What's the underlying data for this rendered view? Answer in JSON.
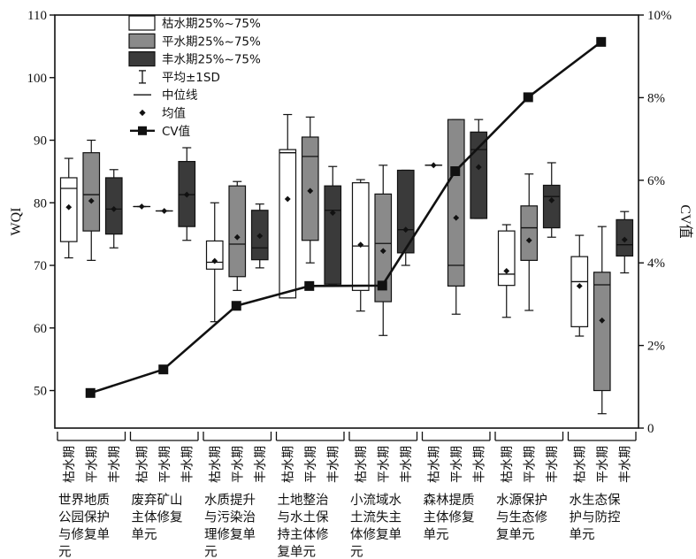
{
  "chart_data": {
    "type": "box",
    "y_label": "WQI",
    "y2_label": "CV值",
    "ylim": [
      44,
      110
    ],
    "yticks": [
      50,
      60,
      70,
      80,
      90,
      100,
      110
    ],
    "y2lim": [
      0,
      10
    ],
    "y2ticks": [
      "0",
      "2%",
      "4%",
      "6%",
      "8%",
      "10%"
    ],
    "legend": {
      "position": "top-left",
      "items": [
        {
          "kind": "box",
          "fill": "#ffffff",
          "label": "枯水期25%~75%"
        },
        {
          "kind": "box",
          "fill": "#8a8a8a",
          "label": "平水期25%~75%"
        },
        {
          "kind": "box",
          "fill": "#3a3a3a",
          "label": "丰水期25%~75%"
        },
        {
          "kind": "errorbar",
          "label": "平均±1SD"
        },
        {
          "kind": "median",
          "label": "中位线"
        },
        {
          "kind": "mean",
          "label": "均值"
        },
        {
          "kind": "cvline",
          "label": "CV值"
        }
      ]
    },
    "periods": [
      "枯水期",
      "平水期",
      "丰水期"
    ],
    "period_colors": [
      "#ffffff",
      "#8a8a8a",
      "#3a3a3a"
    ],
    "units": [
      {
        "name_lines": [
          "世界地质",
          "公园保护",
          "与修复单",
          "元"
        ],
        "boxes": [
          {
            "q1": 73.8,
            "q3": 84.0,
            "median": 82.3,
            "mean": 79.3,
            "low": 71.2,
            "high": 87.1
          },
          {
            "q1": 75.5,
            "q3": 88.0,
            "median": 81.3,
            "mean": 80.3,
            "low": 70.8,
            "high": 90.0
          },
          {
            "q1": 75.0,
            "q3": 84.0,
            "median": 79.0,
            "mean": 79.0,
            "low": 72.8,
            "high": 85.3
          }
        ]
      },
      {
        "name_lines": [
          "废弃矿山",
          "主体修复",
          "单元"
        ],
        "boxes": [
          {
            "q1": 79.4,
            "q3": 79.4,
            "median": 79.4,
            "mean": 79.4,
            "low": 79.4,
            "high": 79.4
          },
          {
            "q1": 78.7,
            "q3": 78.7,
            "median": 78.7,
            "mean": 78.7,
            "low": 78.7,
            "high": 78.7
          },
          {
            "q1": 76.2,
            "q3": 86.6,
            "median": 81.3,
            "mean": 81.3,
            "low": 74.0,
            "high": 88.8
          }
        ]
      },
      {
        "name_lines": [
          "水质提升",
          "与污染治",
          "理修复单",
          "元"
        ],
        "boxes": [
          {
            "q1": 69.4,
            "q3": 73.9,
            "median": 70.5,
            "mean": 70.7,
            "low": 61.0,
            "high": 80.0
          },
          {
            "q1": 68.2,
            "q3": 82.7,
            "median": 73.4,
            "mean": 74.5,
            "low": 66.0,
            "high": 83.4
          },
          {
            "q1": 70.9,
            "q3": 78.8,
            "median": 72.8,
            "mean": 74.7,
            "low": 69.6,
            "high": 79.8
          }
        ]
      },
      {
        "name_lines": [
          "土地整治",
          "与水土保",
          "持主体修",
          "复单元"
        ],
        "boxes": [
          {
            "q1": 64.8,
            "q3": 88.5,
            "median": 88.0,
            "mean": 80.6,
            "low": 64.8,
            "high": 94.1
          },
          {
            "q1": 74.0,
            "q3": 90.5,
            "median": 87.4,
            "mean": 81.9,
            "low": 70.4,
            "high": 93.7
          },
          {
            "q1": 67.0,
            "q3": 82.7,
            "median": 78.8,
            "mean": 78.4,
            "low": 67.0,
            "high": 85.8
          }
        ]
      },
      {
        "name_lines": [
          "小流域水",
          "土流失主",
          "体修复单",
          "元"
        ],
        "boxes": [
          {
            "q1": 66.0,
            "q3": 83.2,
            "median": 73.1,
            "mean": 73.3,
            "low": 62.7,
            "high": 83.7
          },
          {
            "q1": 64.2,
            "q3": 81.4,
            "median": 73.5,
            "mean": 72.3,
            "low": 58.8,
            "high": 86.0
          },
          {
            "q1": 72.0,
            "q3": 85.2,
            "median": 75.7,
            "mean": 75.7,
            "low": 70.0,
            "high": 85.2
          }
        ]
      },
      {
        "name_lines": [
          "森林提质",
          "主体修复",
          "单元"
        ],
        "boxes": [
          {
            "q1": 86.0,
            "q3": 86.0,
            "median": 86.0,
            "mean": 86.0,
            "low": 86.0,
            "high": 86.0
          },
          {
            "q1": 66.7,
            "q3": 93.3,
            "median": 70.0,
            "mean": 77.6,
            "low": 62.2,
            "high": 93.3
          },
          {
            "q1": 77.5,
            "q3": 91.3,
            "median": 88.5,
            "mean": 85.7,
            "low": 77.5,
            "high": 93.3
          }
        ]
      },
      {
        "name_lines": [
          "水源保护",
          "与生态修",
          "复单元"
        ],
        "boxes": [
          {
            "q1": 66.8,
            "q3": 75.5,
            "median": 68.6,
            "mean": 69.1,
            "low": 61.7,
            "high": 76.5
          },
          {
            "q1": 70.8,
            "q3": 79.5,
            "median": 76.0,
            "mean": 74.0,
            "low": 62.8,
            "high": 84.6
          },
          {
            "q1": 76.0,
            "q3": 82.8,
            "median": 81.0,
            "mean": 80.4,
            "low": 74.5,
            "high": 86.4
          }
        ]
      },
      {
        "name_lines": [
          "水生态保",
          "护与防控",
          "单元"
        ],
        "boxes": [
          {
            "q1": 60.2,
            "q3": 71.4,
            "median": 67.4,
            "mean": 66.7,
            "low": 58.7,
            "high": 74.8
          },
          {
            "q1": 50.0,
            "q3": 68.9,
            "median": 66.9,
            "mean": 61.2,
            "low": 46.3,
            "high": 76.2
          },
          {
            "q1": 71.5,
            "q3": 77.3,
            "median": 73.3,
            "mean": 74.1,
            "low": 68.8,
            "high": 78.6
          }
        ]
      }
    ],
    "cv_series": {
      "name": "CV值",
      "values": [
        0.85,
        1.42,
        2.96,
        3.44,
        3.45,
        6.22,
        8.01,
        9.35
      ]
    }
  }
}
